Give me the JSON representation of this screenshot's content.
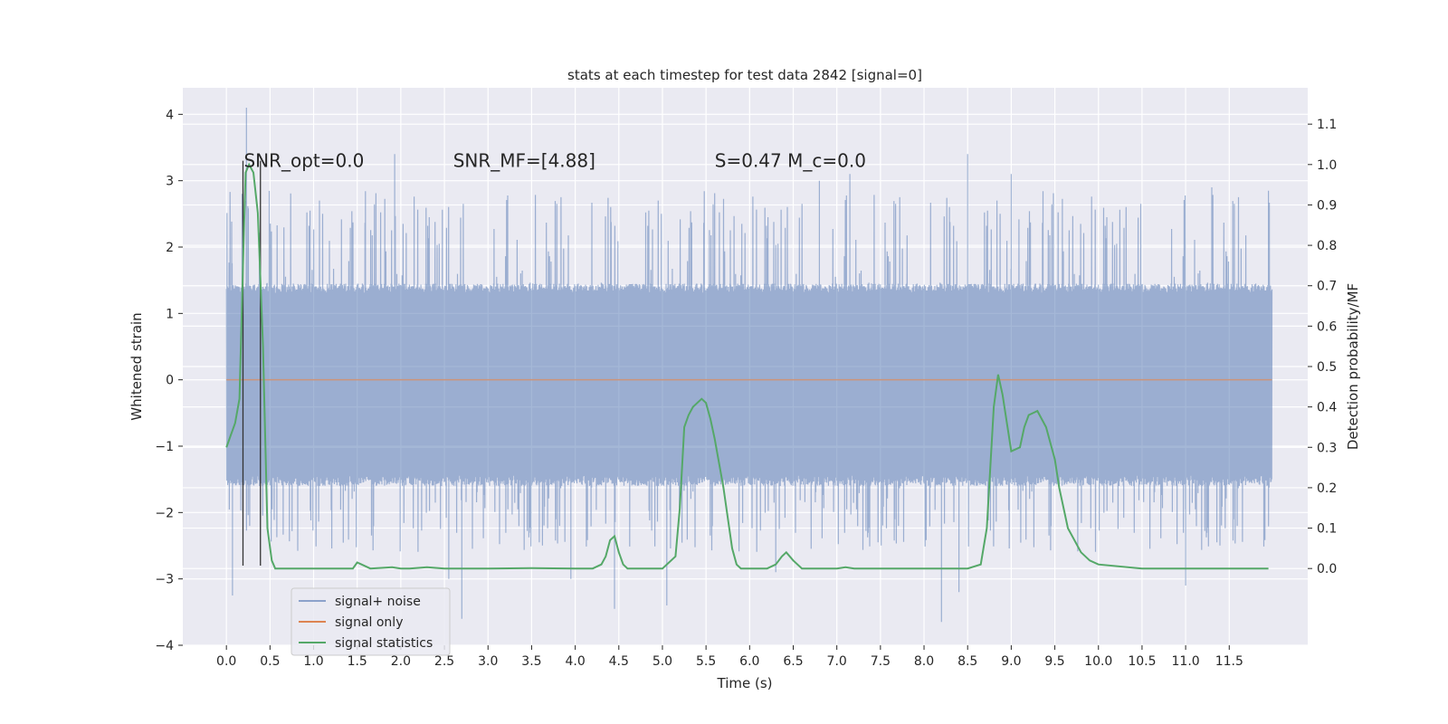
{
  "chart_data": {
    "type": "line",
    "title": "stats at each timestep for test data 2842 [signal=0]",
    "xlabel": "Time (s)",
    "ylabel": "Whitened strain",
    "y2label": "Detection probability/MF",
    "xlim": [
      -0.5,
      12.4
    ],
    "ylim": [
      -4.0,
      4.4
    ],
    "y2lim": [
      -0.19,
      1.19
    ],
    "x_ticks": [
      "0.0",
      "0.5",
      "1.0",
      "1.5",
      "2.0",
      "2.5",
      "3.0",
      "3.5",
      "4.0",
      "4.5",
      "5.0",
      "5.5",
      "6.0",
      "6.5",
      "7.0",
      "7.5",
      "8.0",
      "8.5",
      "9.0",
      "9.5",
      "10.0",
      "10.5",
      "11.0",
      "11.5"
    ],
    "y_ticks": [
      "4",
      "3",
      "2",
      "1",
      "0",
      "−1",
      "−2",
      "−3",
      "−4"
    ],
    "y2_ticks": [
      "1.1",
      "1.0",
      "0.9",
      "0.8",
      "0.7",
      "0.6",
      "0.5",
      "0.4",
      "0.3",
      "0.2",
      "0.1",
      "0.0"
    ],
    "grid": true,
    "background": "#eaeaf2",
    "annotations": [
      {
        "text": "SNR_opt=0.0",
        "x": 0.2,
        "y": 3.3
      },
      {
        "text": "SNR_MF=[4.88]",
        "x": 2.6,
        "y": 3.3
      },
      {
        "text": "S=0.47   M_c=0.0",
        "x": 5.6,
        "y": 3.3
      }
    ],
    "vertical_lines": [
      0.19,
      0.39
    ],
    "legend": {
      "placement": "lower-left",
      "entries": [
        {
          "label": "signal+ noise",
          "color": "#4c72b0"
        },
        {
          "label": "signal only",
          "color": "#dd8452"
        },
        {
          "label": "signal statistics",
          "color": "#55a868"
        }
      ]
    },
    "series": [
      {
        "name": "signal+ noise",
        "color": "#4c72b0",
        "axis": "left",
        "x_range": [
          0.0,
          11.99
        ],
        "core_envelope": [
          -1.6,
          1.45
        ],
        "typical_extremes": [
          -2.4,
          2.6
        ],
        "peaks": [
          {
            "x": 0.23,
            "y": 4.1
          },
          {
            "x": 0.07,
            "y": -3.25
          },
          {
            "x": 1.93,
            "y": 3.4
          },
          {
            "x": 2.7,
            "y": -3.6
          },
          {
            "x": 4.45,
            "y": -3.45
          },
          {
            "x": 5.05,
            "y": -3.4
          },
          {
            "x": 7.15,
            "y": 3.1
          },
          {
            "x": 8.2,
            "y": -3.65
          },
          {
            "x": 8.5,
            "y": 3.4
          },
          {
            "x": 9.0,
            "y": 3.1
          },
          {
            "x": 11.0,
            "y": -3.1
          },
          {
            "x": 11.3,
            "y": 2.9
          },
          {
            "x": 11.95,
            "y": 2.85
          },
          {
            "x": 6.8,
            "y": 3.0
          },
          {
            "x": 3.95,
            "y": -3.0
          },
          {
            "x": 2.55,
            "y": -3.0
          },
          {
            "x": 8.4,
            "y": -3.2
          },
          {
            "x": 6.3,
            "y": -2.9
          }
        ]
      },
      {
        "name": "signal only",
        "color": "#dd8452",
        "axis": "left",
        "x": [
          0.0,
          11.99
        ],
        "y": [
          0.0,
          0.0
        ]
      },
      {
        "name": "signal statistics",
        "color": "#55a868",
        "axis": "right",
        "x": [
          0.0,
          0.1,
          0.15,
          0.19,
          0.22,
          0.26,
          0.31,
          0.36,
          0.42,
          0.47,
          0.52,
          0.56,
          0.62,
          0.7,
          0.9,
          1.2,
          1.45,
          1.5,
          1.55,
          1.65,
          1.9,
          2.0,
          2.1,
          2.3,
          2.5,
          3.0,
          3.5,
          4.0,
          4.2,
          4.3,
          4.35,
          4.4,
          4.45,
          4.5,
          4.55,
          4.6,
          4.7,
          4.8,
          5.0,
          5.15,
          5.2,
          5.25,
          5.3,
          5.35,
          5.45,
          5.5,
          5.55,
          5.6,
          5.7,
          5.8,
          5.85,
          5.9,
          6.0,
          6.2,
          6.3,
          6.37,
          6.42,
          6.5,
          6.6,
          7.0,
          7.1,
          7.2,
          7.5,
          8.0,
          8.5,
          8.65,
          8.72,
          8.8,
          8.85,
          8.9,
          8.95,
          9.0,
          9.1,
          9.15,
          9.2,
          9.3,
          9.4,
          9.5,
          9.55,
          9.65,
          9.8,
          9.9,
          10.0,
          10.5,
          11.0,
          11.5,
          11.95
        ],
        "y": [
          0.3,
          0.36,
          0.42,
          0.75,
          0.98,
          1.0,
          0.98,
          0.88,
          0.55,
          0.1,
          0.02,
          0.0,
          0.0,
          0.0,
          0.0,
          0.0,
          0.0,
          0.015,
          0.01,
          0.0,
          0.003,
          0.0,
          0.0,
          0.003,
          0.0,
          0.0,
          0.001,
          0.0,
          0.0,
          0.01,
          0.03,
          0.07,
          0.08,
          0.04,
          0.01,
          0.0,
          0.0,
          0.0,
          0.0,
          0.03,
          0.15,
          0.35,
          0.38,
          0.4,
          0.42,
          0.41,
          0.37,
          0.32,
          0.2,
          0.05,
          0.01,
          0.0,
          0.0,
          0.0,
          0.01,
          0.03,
          0.04,
          0.02,
          0.0,
          0.0,
          0.003,
          0.0,
          0.0,
          0.0,
          0.0,
          0.01,
          0.1,
          0.4,
          0.48,
          0.43,
          0.36,
          0.29,
          0.3,
          0.35,
          0.38,
          0.39,
          0.35,
          0.27,
          0.2,
          0.1,
          0.04,
          0.02,
          0.01,
          0.0,
          0.0,
          0.0,
          0.0
        ]
      }
    ]
  }
}
